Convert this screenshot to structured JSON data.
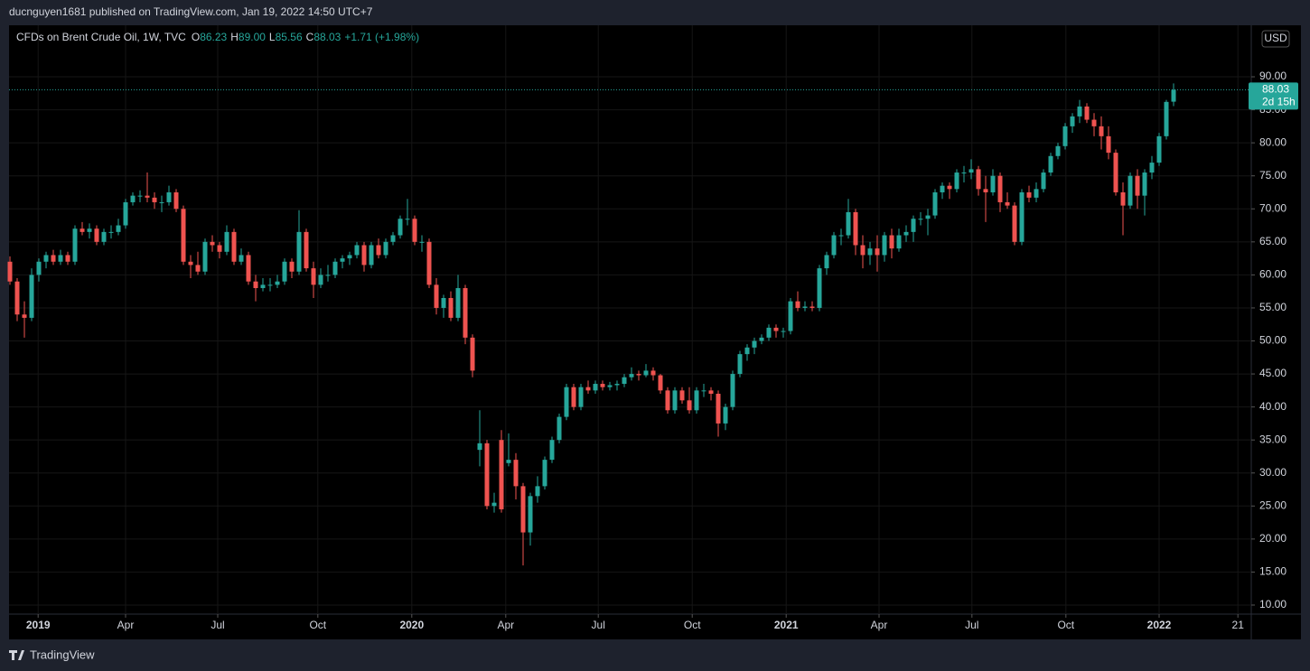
{
  "header": {
    "publisher": "ducnguyen1681 published on TradingView.com, Jan 19, 2022 14:50 UTC+7",
    "footer": "TradingView"
  },
  "chart_data": {
    "type": "candlestick",
    "title": "CFDs on Brent Crude Oil, 1W, TVC",
    "ohlc_legend": [
      {
        "label": "O",
        "value": "86.23"
      },
      {
        "label": "H",
        "value": "89.00"
      },
      {
        "label": "L",
        "value": "85.56"
      },
      {
        "label": "C",
        "value": "88.03"
      }
    ],
    "change": "+1.71 (+1.98%)",
    "currency": "USD",
    "last_price": 88.03,
    "countdown": "2d 15h",
    "up_color": "#26a69a",
    "down_color": "#ef5350",
    "grid": true,
    "ylim": [
      8.63,
      97.8
    ],
    "yticks": [
      {
        "value": 10,
        "label": "10.00"
      },
      {
        "value": 15,
        "label": "15.00"
      },
      {
        "value": 20,
        "label": "20.00"
      },
      {
        "value": 25,
        "label": "25.00"
      },
      {
        "value": 30,
        "label": "30.00"
      },
      {
        "value": 35,
        "label": "35.00"
      },
      {
        "value": 40,
        "label": "40.00"
      },
      {
        "value": 45,
        "label": "45.00"
      },
      {
        "value": 50,
        "label": "50.00"
      },
      {
        "value": 55,
        "label": "55.00"
      },
      {
        "value": 60,
        "label": "60.00"
      },
      {
        "value": 65,
        "label": "65.00"
      },
      {
        "value": 70,
        "label": "70.00"
      },
      {
        "value": 75,
        "label": "75.00"
      },
      {
        "value": 80,
        "label": "80.00"
      },
      {
        "value": 85,
        "label": "85.00"
      },
      {
        "value": 90,
        "label": "90.00"
      }
    ],
    "xlim": [
      -0.125,
      171.75
    ],
    "xticks": [
      {
        "value": 3.9,
        "label": "2019"
      },
      {
        "value": 16,
        "label": "Apr"
      },
      {
        "value": 28.75,
        "label": "Jul"
      },
      {
        "value": 42.6,
        "label": "Oct"
      },
      {
        "value": 55.6,
        "label": "2020"
      },
      {
        "value": 68.6,
        "label": "Apr"
      },
      {
        "value": 81.4,
        "label": "Jul"
      },
      {
        "value": 94.4,
        "label": "Oct"
      },
      {
        "value": 107.4,
        "label": "2021"
      },
      {
        "value": 120.25,
        "label": "Apr"
      },
      {
        "value": 133.1,
        "label": "Jul"
      },
      {
        "value": 146.1,
        "label": "Oct"
      },
      {
        "value": 159,
        "label": "2022"
      },
      {
        "value": 169.9,
        "label": "21"
      }
    ],
    "candles": [
      [
        62,
        62.8,
        58.5,
        59
      ],
      [
        59,
        59.5,
        53,
        54
      ],
      [
        54,
        56,
        50.5,
        53.5
      ],
      [
        53.5,
        61,
        53,
        60
      ],
      [
        60,
        62.5,
        59,
        62
      ],
      [
        62,
        63.5,
        61,
        63
      ],
      [
        63,
        63.8,
        61.5,
        62
      ],
      [
        62,
        63.8,
        61.5,
        63
      ],
      [
        63,
        63.5,
        61.5,
        62
      ],
      [
        62,
        67.5,
        61.5,
        67
      ],
      [
        67,
        68,
        66,
        66.5
      ],
      [
        66.5,
        67.8,
        65.5,
        67
      ],
      [
        67,
        67.5,
        64.5,
        65
      ],
      [
        65,
        67,
        64.5,
        66.5
      ],
      [
        66.5,
        67.5,
        65.5,
        66.5
      ],
      [
        66.5,
        68.5,
        66,
        67.5
      ],
      [
        67.5,
        71.5,
        67,
        71
      ],
      [
        71,
        72.5,
        70.5,
        72
      ],
      [
        72,
        72.8,
        71,
        72
      ],
      [
        72,
        75.5,
        71,
        71.7
      ],
      [
        71.7,
        72.5,
        70,
        71
      ],
      [
        71,
        72,
        69.5,
        71
      ],
      [
        71,
        73.5,
        70.5,
        72.5
      ],
      [
        72.5,
        73,
        69.5,
        70
      ],
      [
        70,
        70.5,
        61.5,
        62
      ],
      [
        62,
        63,
        59.5,
        61.5
      ],
      [
        61.5,
        63.5,
        60,
        60.5
      ],
      [
        60.5,
        65.5,
        60,
        65
      ],
      [
        65,
        66,
        63.5,
        64.5
      ],
      [
        64.5,
        65,
        62.5,
        63.5
      ],
      [
        63.5,
        67.5,
        63,
        66.5
      ],
      [
        66.5,
        67,
        61.5,
        62
      ],
      [
        62,
        64,
        61.5,
        63
      ],
      [
        63,
        63.5,
        58.5,
        59
      ],
      [
        59,
        60,
        56,
        58
      ],
      [
        58,
        59.5,
        57.5,
        58.5
      ],
      [
        58.5,
        59.5,
        57.5,
        58.5
      ],
      [
        58.5,
        60,
        58,
        59
      ],
      [
        59,
        62.5,
        58.5,
        62
      ],
      [
        62,
        62.5,
        59.5,
        60.5
      ],
      [
        60.5,
        69.8,
        60,
        66.5
      ],
      [
        66.5,
        67,
        60.5,
        61
      ],
      [
        61,
        62,
        56.5,
        58.5
      ],
      [
        58.5,
        61,
        58,
        60
      ],
      [
        60,
        61.5,
        59,
        60
      ],
      [
        60,
        62.5,
        59.5,
        62
      ],
      [
        62,
        63,
        61,
        62.5
      ],
      [
        62.5,
        63.5,
        61.5,
        63
      ],
      [
        63,
        65,
        62.5,
        64.5
      ],
      [
        64.5,
        65,
        60.5,
        61.5
      ],
      [
        61.5,
        65,
        61,
        64.5
      ],
      [
        64.5,
        65.5,
        62.5,
        63
      ],
      [
        63,
        65.5,
        62.5,
        65
      ],
      [
        65,
        66.5,
        64.5,
        66
      ],
      [
        66,
        69,
        65.5,
        68.5
      ],
      [
        68.5,
        71.5,
        67.5,
        68.5
      ],
      [
        68.5,
        69,
        64.5,
        65
      ],
      [
        65,
        66,
        63.5,
        65
      ],
      [
        65,
        65.5,
        58,
        58.5
      ],
      [
        58.5,
        59.5,
        54,
        55
      ],
      [
        55,
        57,
        53.5,
        56.5
      ],
      [
        56.5,
        57.5,
        53,
        53.5
      ],
      [
        53.5,
        60,
        53,
        58
      ],
      [
        58,
        58.5,
        49.5,
        50.5
      ],
      [
        50.5,
        51,
        44.5,
        45.5
      ],
      [
        33.5,
        39.5,
        31,
        34.5
      ],
      [
        34.5,
        35,
        24.5,
        25
      ],
      [
        25,
        27,
        24,
        25.5
      ],
      [
        35,
        36.5,
        24,
        24.5
      ],
      [
        31.5,
        36,
        31,
        32
      ],
      [
        32,
        33,
        26,
        28
      ],
      [
        28,
        28.5,
        16,
        21
      ],
      [
        21,
        27,
        19,
        26.5
      ],
      [
        26.5,
        29.5,
        25.5,
        28
      ],
      [
        28,
        32.5,
        27.5,
        32
      ],
      [
        32,
        35.5,
        31.5,
        35
      ],
      [
        35,
        39,
        34.5,
        38.5
      ],
      [
        38.5,
        43.5,
        38,
        43
      ],
      [
        43,
        43.5,
        39.5,
        40
      ],
      [
        40,
        43.5,
        39.5,
        43
      ],
      [
        43,
        44,
        42,
        42.5
      ],
      [
        42.5,
        44,
        42,
        43.5
      ],
      [
        43.5,
        44,
        42.5,
        43
      ],
      [
        43,
        43.8,
        42.5,
        43.3
      ],
      [
        43.3,
        44,
        42.5,
        43.5
      ],
      [
        43.5,
        45,
        43,
        44.5
      ],
      [
        44.5,
        46,
        44,
        45
      ],
      [
        45,
        45.5,
        44,
        44.8
      ],
      [
        44.8,
        46.5,
        44.5,
        45.5
      ],
      [
        45.5,
        46,
        44,
        44.8
      ],
      [
        44.8,
        45,
        42,
        42.5
      ],
      [
        42.5,
        43,
        39,
        39.5
      ],
      [
        39.5,
        43,
        39,
        42.5
      ],
      [
        42.5,
        43,
        40.5,
        41
      ],
      [
        41,
        43,
        39,
        39.5
      ],
      [
        39.5,
        43,
        39,
        42.5
      ],
      [
        42.5,
        43.5,
        41.5,
        42.5
      ],
      [
        42.5,
        43,
        41,
        42
      ],
      [
        42,
        42.5,
        35.5,
        37.5
      ],
      [
        37.5,
        40.5,
        36.5,
        40
      ],
      [
        40,
        45.5,
        39.5,
        45
      ],
      [
        45,
        48.5,
        44.5,
        48
      ],
      [
        48,
        49.5,
        47,
        49
      ],
      [
        49,
        50.5,
        48,
        50
      ],
      [
        50,
        51,
        49.5,
        50.5
      ],
      [
        50.5,
        52.5,
        50,
        52
      ],
      [
        52,
        52.5,
        50.5,
        51.5
      ],
      [
        51.5,
        52,
        50.5,
        51.5
      ],
      [
        51.5,
        56.5,
        51,
        56
      ],
      [
        56,
        57.5,
        54.5,
        55
      ],
      [
        55,
        56,
        54.5,
        55.2
      ],
      [
        55.2,
        56,
        54.5,
        55
      ],
      [
        55,
        61.5,
        54.5,
        61
      ],
      [
        61,
        63.5,
        60,
        63
      ],
      [
        63,
        66.5,
        62.5,
        66
      ],
      [
        66,
        67,
        64.5,
        66
      ],
      [
        66,
        71.5,
        65.5,
        69.5
      ],
      [
        69.5,
        70,
        63,
        64.5
      ],
      [
        64.5,
        66,
        61,
        63
      ],
      [
        63,
        65,
        61.5,
        64
      ],
      [
        64,
        66,
        60.5,
        63
      ],
      [
        63,
        66.5,
        62,
        66
      ],
      [
        66,
        67,
        62.5,
        64
      ],
      [
        64,
        67,
        63.5,
        66
      ],
      [
        66,
        67.5,
        65,
        66.5
      ],
      [
        66.5,
        69,
        65,
        68.5
      ],
      [
        68.5,
        69.5,
        67.5,
        68.5
      ],
      [
        68.5,
        70,
        66,
        69
      ],
      [
        69,
        73,
        68.5,
        72.5
      ],
      [
        72.5,
        74,
        71.5,
        73.5
      ],
      [
        73.5,
        74,
        71.5,
        73
      ],
      [
        73,
        76,
        72.5,
        75.5
      ],
      [
        75.5,
        76.5,
        74,
        75.5
      ],
      [
        75.5,
        77.5,
        74.5,
        76
      ],
      [
        76,
        76.5,
        72,
        73
      ],
      [
        73,
        75,
        68,
        72.5
      ],
      [
        72.5,
        76,
        72,
        75
      ],
      [
        75,
        75.5,
        69.5,
        71
      ],
      [
        71,
        72.5,
        70,
        70.5
      ],
      [
        70.5,
        71,
        64.5,
        65
      ],
      [
        65,
        73,
        64.5,
        72.5
      ],
      [
        72.5,
        73.5,
        71,
        71.7
      ],
      [
        71.7,
        74,
        71,
        73
      ],
      [
        73,
        76,
        72.5,
        75.5
      ],
      [
        75.5,
        78.5,
        75,
        78
      ],
      [
        78,
        80,
        77.5,
        79.5
      ],
      [
        79.5,
        83,
        79,
        82.5
      ],
      [
        82.5,
        84.5,
        81.5,
        84
      ],
      [
        84,
        86.5,
        83,
        85.5
      ],
      [
        85.5,
        86,
        83,
        83.5
      ],
      [
        83.5,
        84.5,
        81,
        82.5
      ],
      [
        82.5,
        84,
        79,
        81
      ],
      [
        81,
        82.5,
        77.5,
        78.5
      ],
      [
        78.5,
        79,
        72,
        72.5
      ],
      [
        72.5,
        74,
        66,
        70.5
      ],
      [
        70.5,
        75.5,
        70,
        75
      ],
      [
        75,
        76,
        70,
        72
      ],
      [
        72,
        76,
        69,
        75.5
      ],
      [
        75.5,
        78,
        74.5,
        77
      ],
      [
        77,
        81.5,
        76.5,
        81
      ],
      [
        81,
        86.5,
        80.5,
        86.2
      ],
      [
        86.23,
        89,
        85.56,
        88.03
      ]
    ]
  }
}
